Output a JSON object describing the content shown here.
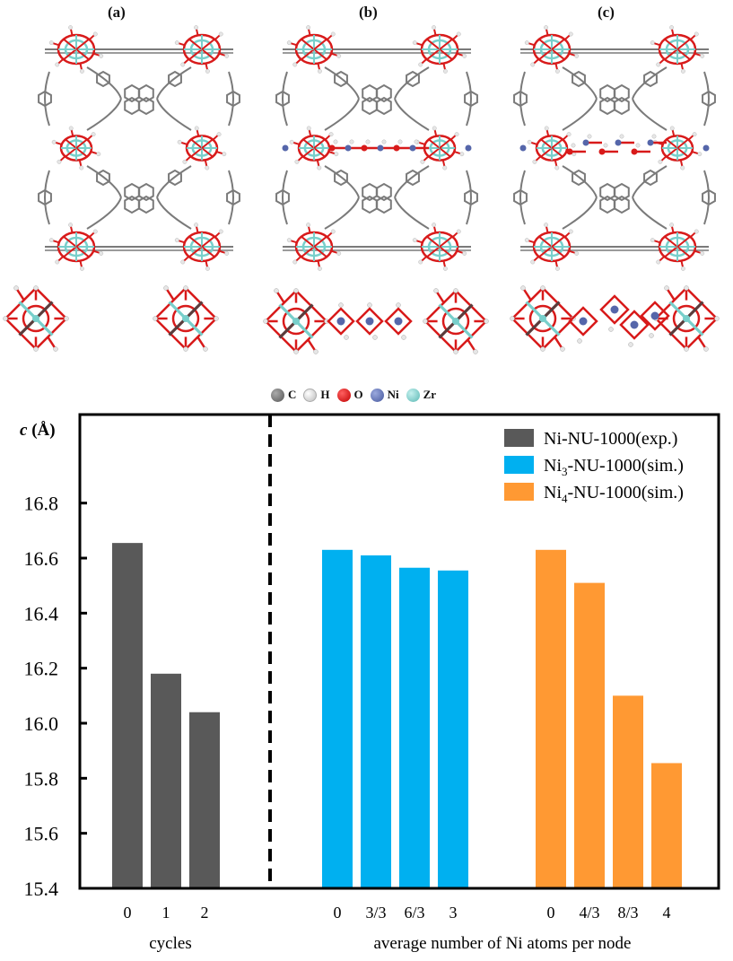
{
  "panels": [
    {
      "label": "(a)"
    },
    {
      "label": "(b)"
    },
    {
      "label": "(c)"
    }
  ],
  "atom_legend": [
    {
      "symbol": "C",
      "color": "#6e6e6e"
    },
    {
      "symbol": "H",
      "color": "#f0f0f0"
    },
    {
      "symbol": "O",
      "color": "#e01010"
    },
    {
      "symbol": "Ni",
      "color": "#5b6fb5"
    },
    {
      "symbol": "Zr",
      "color": "#7fd3d0"
    }
  ],
  "colors": {
    "exp": "#595959",
    "sim3": "#00b0f0",
    "sim4": "#ff9933"
  },
  "chart_data": {
    "type": "bar",
    "title": "",
    "ylabel": "c (Å)",
    "ylim": [
      15.4,
      17.0
    ],
    "yticks": [
      15.4,
      15.6,
      15.8,
      16.0,
      16.2,
      16.4,
      16.6,
      16.8
    ],
    "ytick_labels": [
      "15.4",
      "15.6",
      "15.8",
      "16.0",
      "16.2",
      "16.4",
      "16.6",
      "16.8"
    ],
    "grid": false,
    "legend_position": "top-right",
    "xlabels": [
      "cycles",
      "average number of Ni atoms per node"
    ],
    "series": [
      {
        "name": "Ni-NU-1000(exp.)",
        "name_main": "Ni",
        "name_sub": "",
        "name_rest": "-NU-1000(exp.)",
        "color": "#595959",
        "categories": [
          "0",
          "1",
          "2"
        ],
        "values": [
          16.655,
          16.18,
          16.04
        ]
      },
      {
        "name": "Ni3-NU-1000(sim.)",
        "name_main": "Ni",
        "name_sub": "3",
        "name_rest": "-NU-1000(sim.)",
        "color": "#00b0f0",
        "categories": [
          "0",
          "3/3",
          "6/3",
          "3"
        ],
        "values": [
          16.63,
          16.61,
          16.565,
          16.555
        ]
      },
      {
        "name": "Ni4-NU-1000(sim.)",
        "name_main": "Ni",
        "name_sub": "4",
        "name_rest": "-NU-1000(sim.)",
        "color": "#ff9933",
        "categories": [
          "0",
          "4/3",
          "8/3",
          "4"
        ],
        "values": [
          16.63,
          16.51,
          16.1,
          15.855
        ]
      }
    ]
  }
}
